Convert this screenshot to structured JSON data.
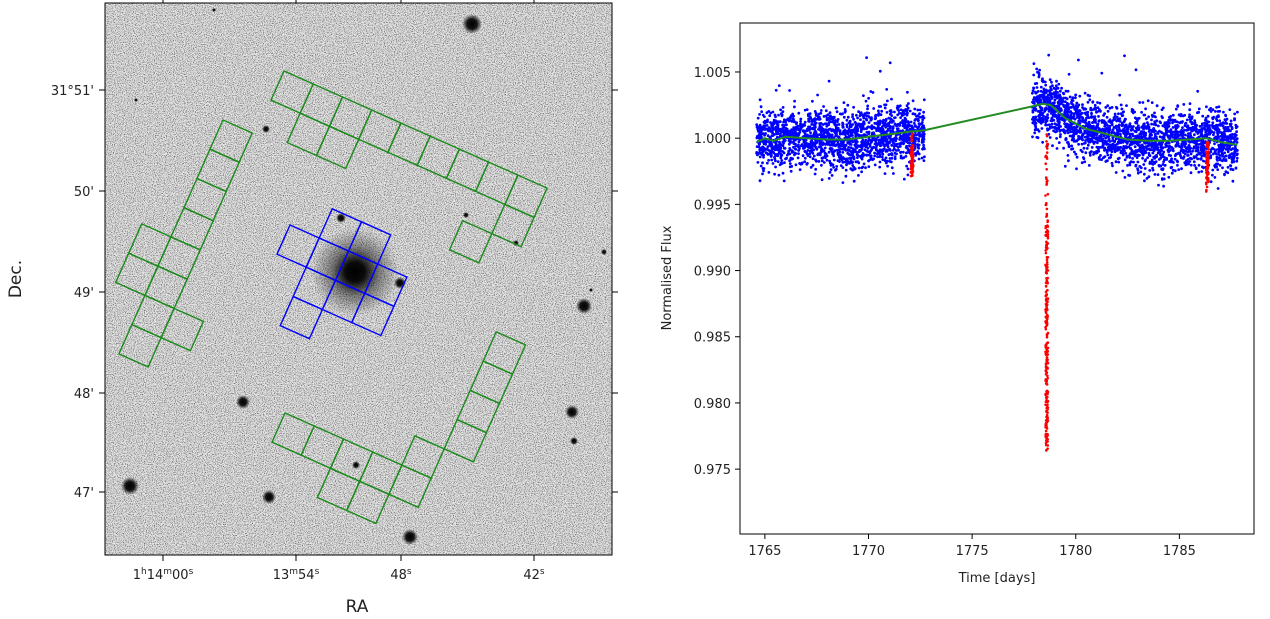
{
  "chart_data": [
    {
      "type": "image",
      "xlabel": "RA",
      "ylabel": "Dec.",
      "ra_tick_labels": [
        {
          "main": "1",
          "parts": [
            {
              "t": "1"
            },
            {
              "t": "h",
              "sup": true
            },
            {
              "t": "14"
            },
            {
              "t": "m",
              "sup": true
            },
            {
              "t": "00"
            },
            {
              "t": "s",
              "sup": true
            }
          ]
        },
        {
          "main": "13",
          "parts": [
            {
              "t": "13"
            },
            {
              "t": "m",
              "sup": true
            },
            {
              "t": "54"
            },
            {
              "t": "s",
              "sup": true
            }
          ]
        },
        {
          "main": "48",
          "parts": [
            {
              "t": "48"
            },
            {
              "t": "s",
              "sup": true
            }
          ]
        },
        {
          "main": "42",
          "parts": [
            {
              "t": "42"
            },
            {
              "t": "s",
              "sup": true
            }
          ]
        }
      ],
      "ra_tick_text": [
        "1h14m00s",
        "13m54s",
        "48s",
        "42s"
      ],
      "dec_tick_labels": [
        "31°51'",
        "50'",
        "49'",
        "48'",
        "47'"
      ],
      "apertures": {
        "target_color": "#0000ff",
        "background_color": "#1a8a1a"
      }
    },
    {
      "type": "scatter",
      "xlabel": "Time [days]",
      "ylabel": "Normalised Flux",
      "xlim": [
        1763.8,
        1788.6
      ],
      "ylim": [
        0.9701,
        1.0087
      ],
      "xticks": [
        1765,
        1770,
        1775,
        1780,
        1785
      ],
      "yticks": [
        0.975,
        0.98,
        0.985,
        0.99,
        0.995,
        1.0,
        1.005
      ],
      "ytick_labels": [
        "0.975",
        "0.980",
        "0.985",
        "0.990",
        "0.995",
        "1.000",
        "1.005"
      ],
      "grid": false,
      "series": [
        {
          "color": "#0000ff",
          "kind": "points",
          "segments": [
            [
              1764.6,
              1772.7
            ],
            [
              1777.9,
              1787.8
            ]
          ],
          "scatter_sigma": 0.0011
        },
        {
          "color": "#ff0000",
          "kind": "points",
          "events": [
            {
              "center": 1772.1,
              "depth": 0.0028
            },
            {
              "center": 1778.6,
              "depth": 0.0255
            },
            {
              "center": 1786.35,
              "depth": 0.003
            }
          ]
        },
        {
          "color": "#228b22",
          "kind": "line",
          "x": [
            1764.6,
            1765.0,
            1765.4,
            1766.0,
            1767.0,
            1768.0,
            1769.0,
            1770.0,
            1771.0,
            1772.0,
            1772.7,
            1777.9,
            1778.4,
            1778.8,
            1779.5,
            1780.5,
            1781.5,
            1782.5,
            1783.5,
            1784.5,
            1785.5,
            1786.3,
            1787.0,
            1787.8
          ],
          "y": [
            0.9997,
            1.0,
            0.9998,
            1.0001,
            1.0,
            0.9999,
            0.9999,
            1.0001,
            1.0003,
            1.0005,
            1.0006,
            1.0024,
            1.0026,
            1.0025,
            1.0015,
            1.0007,
            1.0003,
            0.9999,
            0.9998,
            0.9998,
            0.9999,
            1.0,
            0.9997,
            0.9995
          ]
        }
      ]
    }
  ]
}
